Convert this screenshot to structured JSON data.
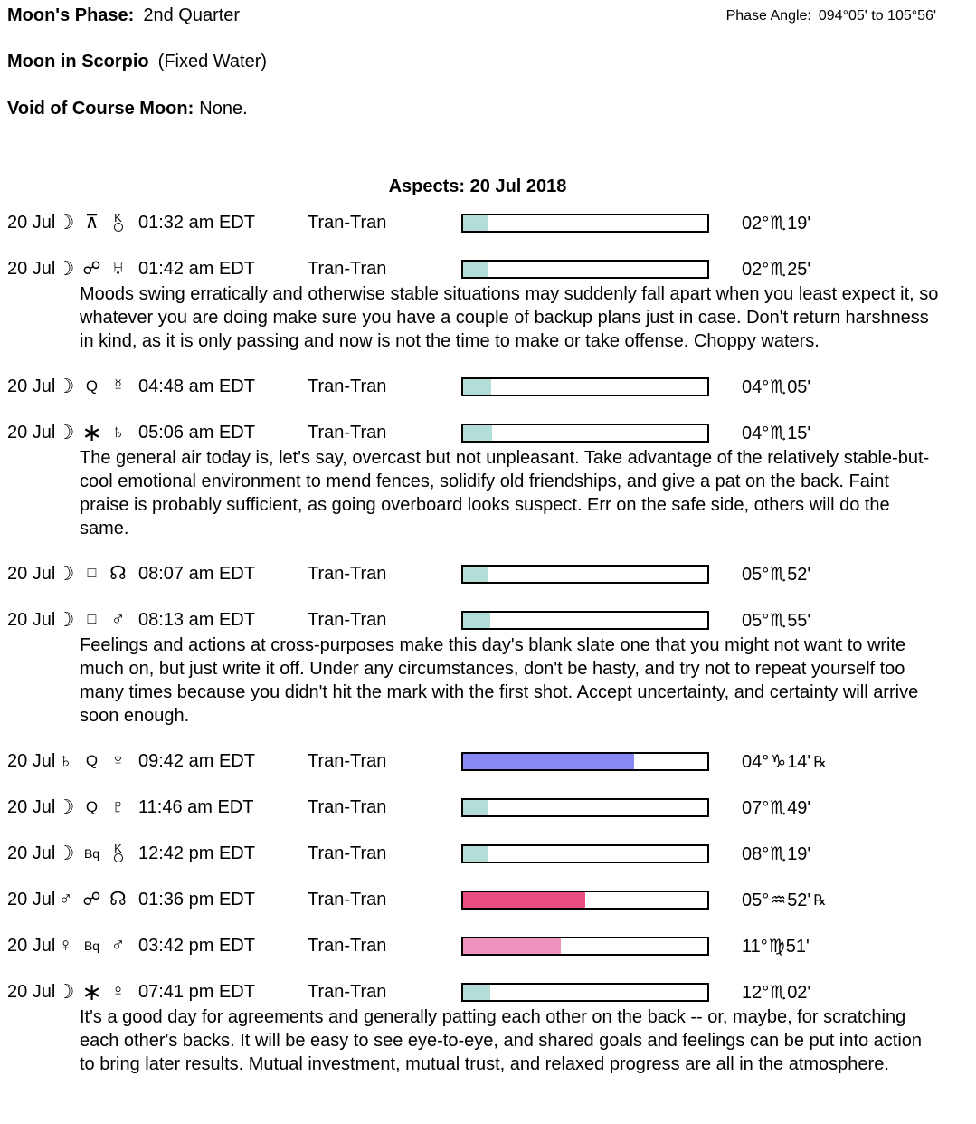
{
  "header": {
    "moons_phase_label": "Moon's Phase:",
    "moons_phase_value": "2nd Quarter",
    "phase_angle_label": "Phase Angle:",
    "phase_angle_value": "094°05' to 105°56'",
    "moon_sign_label": "Moon in Scorpio",
    "moon_sign_note": "(Fixed Water)",
    "voc_label": "Void of Course Moon:",
    "voc_value": "None."
  },
  "aspects_title": "Aspects: 20 Jul 2018",
  "colors": {
    "teal": "#b3ded7",
    "purple": "#8a88f2",
    "darkpink": "#e94e81",
    "lightpink": "#ee92be",
    "bar_border": "#000000"
  },
  "glyphs": {
    "moon": "☽",
    "mercury": "☿",
    "venus": "♀",
    "mars": "♂",
    "saturn": "♄",
    "uranus": "♅",
    "neptune": "♆",
    "pluto": "♇",
    "node": "☊",
    "chiron": "K",
    "quincunx": "⊼",
    "opposition": "☍",
    "quintile": "Q",
    "sextile": "∗",
    "square": "□",
    "biquintile": "Bq",
    "scorpio": "♏",
    "capricorn": "♑",
    "aquarius": "♒",
    "virgo": "♍",
    "retrograde": "℞"
  },
  "aspects": [
    {
      "date": "20 Jul",
      "p1": "moon",
      "asp": "quincunx",
      "p2": "chiron",
      "time": "01:32 am EDT",
      "type": "Tran-Tran",
      "fill": 0.1,
      "color": "teal",
      "deg": "02°",
      "sign": "scorpio",
      "min": "19'",
      "retro": false,
      "note": null
    },
    {
      "date": "20 Jul",
      "p1": "moon",
      "asp": "opposition",
      "p2": "uranus",
      "time": "01:42 am EDT",
      "type": "Tran-Tran",
      "fill": 0.105,
      "color": "teal",
      "deg": "02°",
      "sign": "scorpio",
      "min": "25'",
      "retro": false,
      "note": "Moods swing erratically and otherwise stable situations may suddenly fall apart when you least expect it, so whatever you are doing make sure you have a couple of backup plans just in case. Don't return harshness in kind, as it is only passing and now is not the time to make or take offense. Choppy waters."
    },
    {
      "date": "20 Jul",
      "p1": "moon",
      "asp": "quintile",
      "p2": "mercury",
      "time": "04:48 am EDT",
      "type": "Tran-Tran",
      "fill": 0.115,
      "color": "teal",
      "deg": "04°",
      "sign": "scorpio",
      "min": "05'",
      "retro": false,
      "note": null
    },
    {
      "date": "20 Jul",
      "p1": "moon",
      "asp": "sextile",
      "p2": "saturn",
      "time": "05:06 am EDT",
      "type": "Tran-Tran",
      "fill": 0.12,
      "color": "teal",
      "deg": "04°",
      "sign": "scorpio",
      "min": "15'",
      "retro": false,
      "note": "The general air today is, let's say, overcast but not unpleasant. Take advantage of the relatively stable-but-cool emotional environment to mend fences, solidify old friendships, and give a pat on the back. Faint praise is probably sufficient, as going overboard looks suspect. Err on the safe side, others will do the same."
    },
    {
      "date": "20 Jul",
      "p1": "moon",
      "asp": "square",
      "p2": "node",
      "time": "08:07 am EDT",
      "type": "Tran-Tran",
      "fill": 0.105,
      "color": "teal",
      "deg": "05°",
      "sign": "scorpio",
      "min": "52'",
      "retro": false,
      "note": null
    },
    {
      "date": "20 Jul",
      "p1": "moon",
      "asp": "square",
      "p2": "mars",
      "time": "08:13 am EDT",
      "type": "Tran-Tran",
      "fill": 0.11,
      "color": "teal",
      "deg": "05°",
      "sign": "scorpio",
      "min": "55'",
      "retro": false,
      "note": "Feelings and actions at cross-purposes make this day's blank slate one that you might not want to write much on, but just write it off. Under any circumstances, don't be hasty, and try not to repeat yourself too many times because you didn't hit the mark with the first shot. Accept uncertainty, and certainty will arrive soon enough."
    },
    {
      "date": "20 Jul",
      "p1": "saturn",
      "asp": "quintile",
      "p2": "neptune",
      "time": "09:42 am EDT",
      "type": "Tran-Tran",
      "fill": 0.7,
      "color": "purple",
      "deg": "04°",
      "sign": "capricorn",
      "min": "14'",
      "retro": true,
      "note": null
    },
    {
      "date": "20 Jul",
      "p1": "moon",
      "asp": "quintile",
      "p2": "pluto",
      "time": "11:46 am EDT",
      "type": "Tran-Tran",
      "fill": 0.1,
      "color": "teal",
      "deg": "07°",
      "sign": "scorpio",
      "min": "49'",
      "retro": false,
      "note": null
    },
    {
      "date": "20 Jul",
      "p1": "moon",
      "asp": "biquintile",
      "p2": "chiron",
      "time": "12:42 pm EDT",
      "type": "Tran-Tran",
      "fill": 0.1,
      "color": "teal",
      "deg": "08°",
      "sign": "scorpio",
      "min": "19'",
      "retro": false,
      "note": null
    },
    {
      "date": "20 Jul",
      "p1": "mars",
      "asp": "opposition",
      "p2": "node",
      "time": "01:36 pm EDT",
      "type": "Tran-Tran",
      "fill": 0.5,
      "color": "darkpink",
      "deg": "05°",
      "sign": "aquarius",
      "min": "52'",
      "retro": true,
      "note": null
    },
    {
      "date": "20 Jul",
      "p1": "venus",
      "asp": "biquintile",
      "p2": "mars",
      "time": "03:42 pm EDT",
      "type": "Tran-Tran",
      "fill": 0.4,
      "color": "lightpink",
      "deg": "11°",
      "sign": "virgo",
      "min": "51'",
      "retro": false,
      "note": null
    },
    {
      "date": "20 Jul",
      "p1": "moon",
      "asp": "sextile",
      "p2": "venus",
      "time": "07:41 pm EDT",
      "type": "Tran-Tran",
      "fill": 0.11,
      "color": "teal",
      "deg": "12°",
      "sign": "scorpio",
      "min": "02'",
      "retro": false,
      "note": "It's a good day for agreements and generally patting each other on the back -- or, maybe, for scratching each other's backs. It will be easy to see eye-to-eye, and shared goals and feelings can be put into action to bring later results. Mutual investment, mutual trust, and relaxed progress are all in the atmosphere."
    }
  ]
}
